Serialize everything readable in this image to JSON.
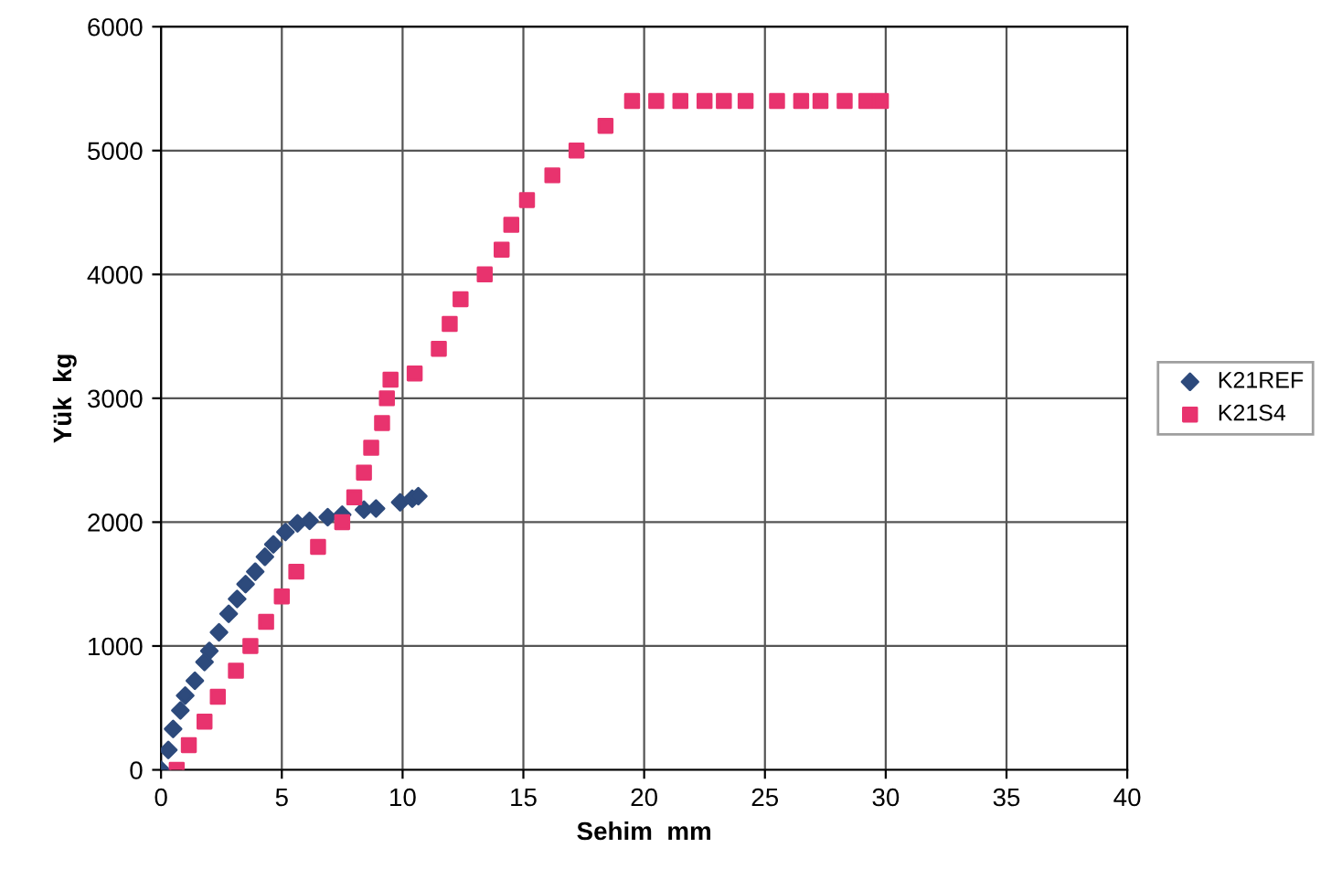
{
  "chart_data": {
    "type": "scatter",
    "xlabel": "Sehim  mm",
    "ylabel": "Yük  kg",
    "xlim": [
      0,
      40
    ],
    "ylim": [
      0,
      6000
    ],
    "xticks": [
      0,
      5,
      10,
      15,
      20,
      25,
      30,
      35,
      40
    ],
    "yticks": [
      0,
      1000,
      2000,
      3000,
      4000,
      5000,
      6000
    ],
    "grid": true,
    "legend": "right",
    "series": [
      {
        "name": "K21REF",
        "color": "#2d4a7c",
        "marker": "diamond",
        "x": [
          0,
          0.3,
          0.5,
          0.8,
          1.0,
          1.4,
          1.8,
          2.0,
          2.4,
          2.8,
          3.15,
          3.5,
          3.9,
          4.3,
          4.65,
          5.15,
          5.65,
          6.15,
          6.9,
          7.5,
          8.4,
          8.9,
          9.9,
          10.4,
          10.65
        ],
        "values": [
          0,
          160,
          330,
          480,
          600,
          720,
          870,
          960,
          1110,
          1260,
          1380,
          1500,
          1600,
          1720,
          1820,
          1920,
          1990,
          2010,
          2040,
          2060,
          2100,
          2110,
          2160,
          2190,
          2210
        ]
      },
      {
        "name": "K21S4",
        "color": "#e8336e",
        "marker": "square",
        "x": [
          0.65,
          1.15,
          1.8,
          2.35,
          3.1,
          3.7,
          4.35,
          5.0,
          5.6,
          6.5,
          7.5,
          8.0,
          8.4,
          8.7,
          9.15,
          9.35,
          9.5,
          10.5,
          11.5,
          11.95,
          12.4,
          13.4,
          14.1,
          14.5,
          15.15,
          16.2,
          17.2,
          18.4,
          19.5,
          20.5,
          21.5,
          22.5,
          23.3,
          24.2,
          25.5,
          26.5,
          27.3,
          28.3,
          29.2,
          29.8
        ],
        "values": [
          0,
          200,
          390,
          590,
          800,
          1000,
          1195,
          1400,
          1600,
          1800,
          2000,
          2200,
          2400,
          2600,
          2800,
          3000,
          3150,
          3200,
          3400,
          3600,
          3800,
          4000,
          4200,
          4400,
          4600,
          4800,
          5000,
          5200,
          5400,
          5400,
          5400,
          5400,
          5400,
          5400,
          5400,
          5400,
          5400,
          5400,
          5400,
          5400
        ]
      }
    ]
  }
}
